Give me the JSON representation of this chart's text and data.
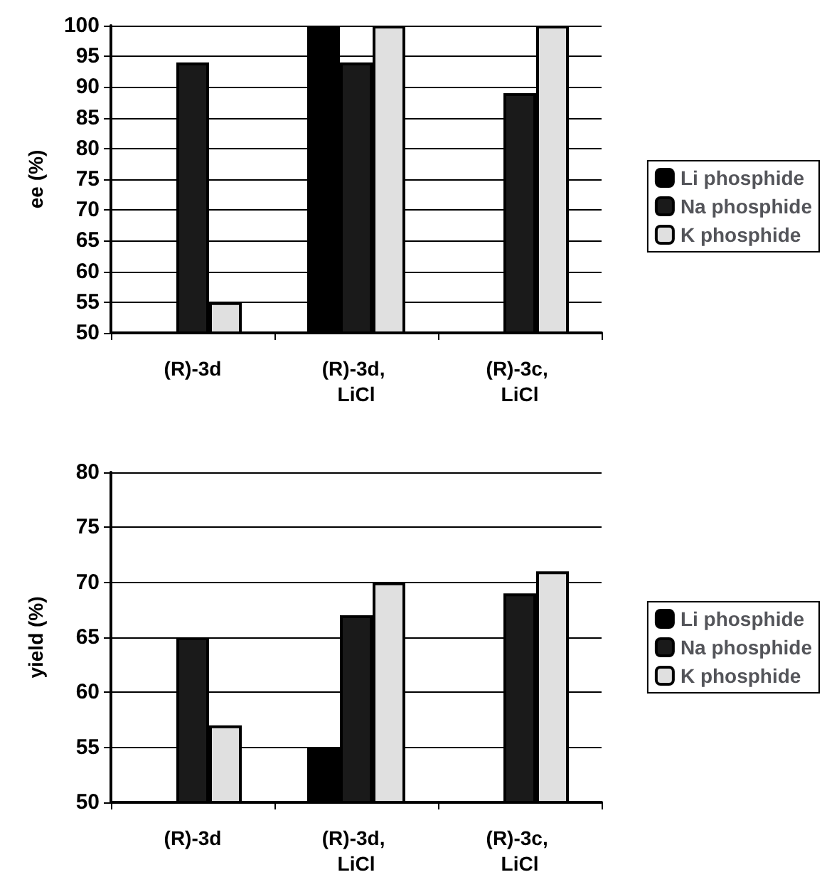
{
  "chart_data": [
    {
      "type": "bar",
      "ylabel": "ee (%)",
      "categories": [
        "(R)-3d",
        "(R)-3d, LiCl",
        "(R)-3c, LiCl"
      ],
      "series": [
        {
          "name": "Li phosphide",
          "color": "#000000",
          "values": [
            null,
            100,
            null
          ]
        },
        {
          "name": "Na phosphide",
          "color": "#1a1a1a",
          "values": [
            94,
            94,
            89
          ]
        },
        {
          "name": "K phosphide",
          "color": "#e0e0e0",
          "values": [
            55,
            100,
            100
          ]
        }
      ],
      "ylim": [
        50,
        100
      ],
      "yticks": [
        50,
        55,
        60,
        65,
        70,
        75,
        80,
        85,
        90,
        95,
        100
      ],
      "grid": "y",
      "legend": "right"
    },
    {
      "type": "bar",
      "ylabel": "yield (%)",
      "categories": [
        "(R)-3d",
        "(R)-3d, LiCl",
        "(R)-3c, LiCl"
      ],
      "series": [
        {
          "name": "Li phosphide",
          "color": "#000000",
          "values": [
            null,
            55,
            null
          ]
        },
        {
          "name": "Na phosphide",
          "color": "#1a1a1a",
          "values": [
            65,
            67,
            69
          ]
        },
        {
          "name": "K phosphide",
          "color": "#e0e0e0",
          "values": [
            57,
            70,
            71
          ]
        }
      ],
      "ylim": [
        50,
        80
      ],
      "yticks": [
        50,
        55,
        60,
        65,
        70,
        75,
        80
      ],
      "grid": "y",
      "legend": "right"
    }
  ]
}
